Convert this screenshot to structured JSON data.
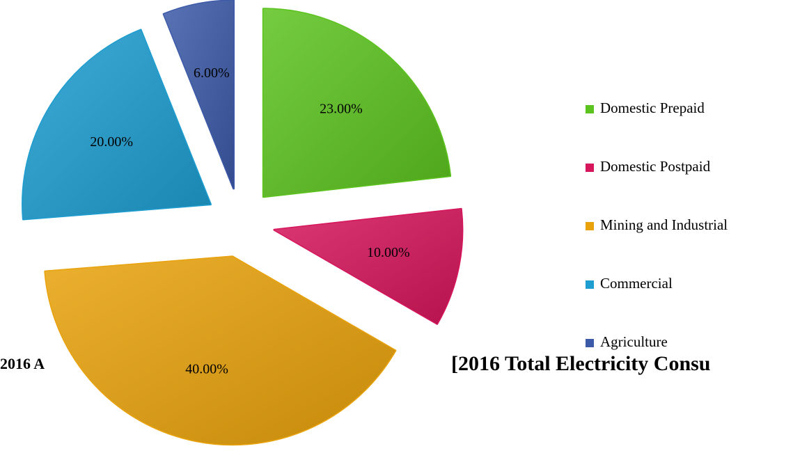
{
  "chart_data": {
    "type": "pie",
    "titles": [
      "2016 A",
      "[2016 Total Electricity Consu"
    ],
    "categories": [
      "Domestic Prepaid",
      "Domestic Postpaid",
      "Mining and Industrial",
      "Commercial",
      "Agriculture"
    ],
    "values": [
      23,
      10,
      40,
      20,
      6
    ],
    "value_labels": [
      "23.00%",
      "10.00%",
      "40.00%",
      "20.00%",
      "6.00%"
    ],
    "colors": [
      "#5cc31e",
      "#d6155a",
      "#e9a20b",
      "#1d9dd0",
      "#3c5aa8"
    ],
    "exploded": true,
    "legend": "right"
  }
}
